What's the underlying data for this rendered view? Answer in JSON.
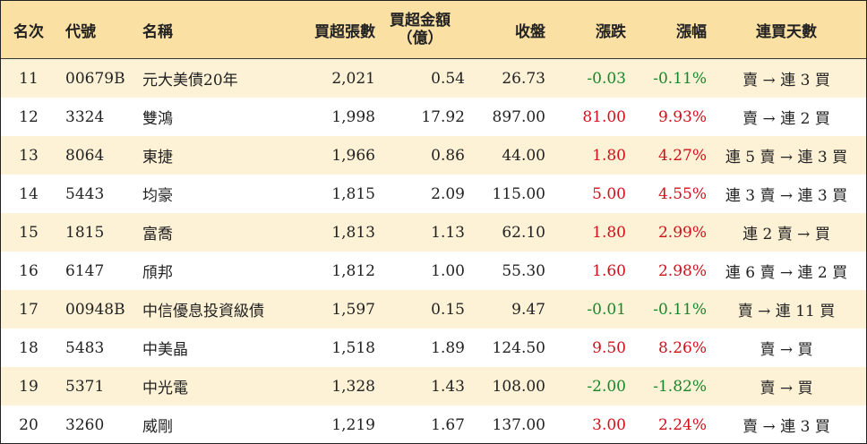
{
  "header": {
    "rank": "名次",
    "code": "代號",
    "name": "名稱",
    "net_buy_lots": "買超張數",
    "net_buy_amount_line1": "買超金額",
    "net_buy_amount_line2": "（億）",
    "close": "收盤",
    "change": "漲跌",
    "change_pct": "漲幅",
    "consecutive_days": "連買天數"
  },
  "colors": {
    "header_bg": "#fbe0a3",
    "alt_row_bg": "#fdf1d6",
    "up": "#d0101a",
    "down": "#17872a"
  },
  "rows": [
    {
      "rank": "11",
      "code": "00679B",
      "name": "元大美債20年",
      "buy": "2,021",
      "amount": "0.54",
      "close": "26.73",
      "change": "-0.03",
      "pct": "-0.11%",
      "days": "賣 → 連 3 買",
      "dir": "down"
    },
    {
      "rank": "12",
      "code": "3324",
      "name": "雙鴻",
      "buy": "1,998",
      "amount": "17.92",
      "close": "897.00",
      "change": "81.00",
      "pct": "9.93%",
      "days": "賣 → 連 2 買",
      "dir": "up"
    },
    {
      "rank": "13",
      "code": "8064",
      "name": "東捷",
      "buy": "1,966",
      "amount": "0.86",
      "close": "44.00",
      "change": "1.80",
      "pct": "4.27%",
      "days": "連 5 賣 → 連 3 買",
      "dir": "up"
    },
    {
      "rank": "14",
      "code": "5443",
      "name": "均豪",
      "buy": "1,815",
      "amount": "2.09",
      "close": "115.00",
      "change": "5.00",
      "pct": "4.55%",
      "days": "連 3 賣 → 連 3 買",
      "dir": "up"
    },
    {
      "rank": "15",
      "code": "1815",
      "name": "富喬",
      "buy": "1,813",
      "amount": "1.13",
      "close": "62.10",
      "change": "1.80",
      "pct": "2.99%",
      "days": "連 2 賣 → 買",
      "dir": "up"
    },
    {
      "rank": "16",
      "code": "6147",
      "name": "頎邦",
      "buy": "1,812",
      "amount": "1.00",
      "close": "55.30",
      "change": "1.60",
      "pct": "2.98%",
      "days": "連 6 賣 → 連 2 買",
      "dir": "up"
    },
    {
      "rank": "17",
      "code": "00948B",
      "name": "中信優息投資級債",
      "buy": "1,597",
      "amount": "0.15",
      "close": "9.47",
      "change": "-0.01",
      "pct": "-0.11%",
      "days": "賣 → 連 11 買",
      "dir": "down"
    },
    {
      "rank": "18",
      "code": "5483",
      "name": "中美晶",
      "buy": "1,518",
      "amount": "1.89",
      "close": "124.50",
      "change": "9.50",
      "pct": "8.26%",
      "days": "賣 → 買",
      "dir": "up"
    },
    {
      "rank": "19",
      "code": "5371",
      "name": "中光電",
      "buy": "1,328",
      "amount": "1.43",
      "close": "108.00",
      "change": "-2.00",
      "pct": "-1.82%",
      "days": "賣 → 買",
      "dir": "down"
    },
    {
      "rank": "20",
      "code": "3260",
      "name": "威剛",
      "buy": "1,219",
      "amount": "1.67",
      "close": "137.00",
      "change": "3.00",
      "pct": "2.24%",
      "days": "賣 → 連 3 買",
      "dir": "up"
    }
  ]
}
